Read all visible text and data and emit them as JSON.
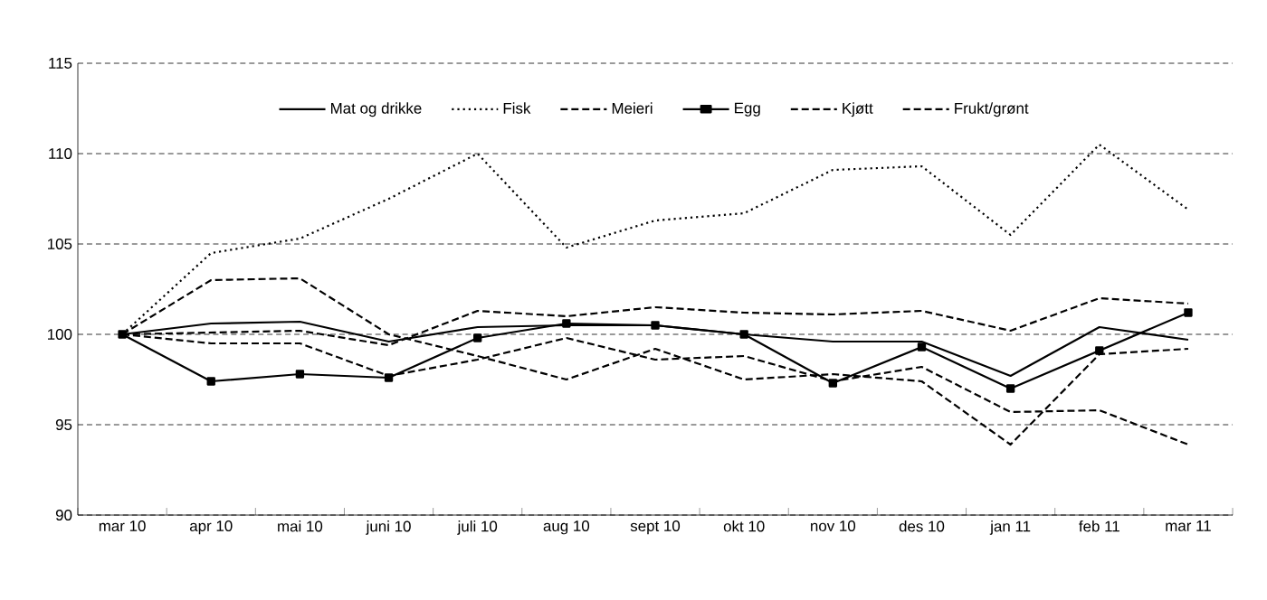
{
  "chart_data": {
    "type": "line",
    "categories": [
      "mar 10",
      "apr 10",
      "mai 10",
      "juni 10",
      "juli 10",
      "aug 10",
      "sept 10",
      "okt 10",
      "nov 10",
      "des 10",
      "jan 11",
      "feb 11",
      "mar 11"
    ],
    "ylim": [
      90,
      115
    ],
    "yticks": [
      90,
      95,
      100,
      105,
      110,
      115
    ],
    "grid": "y",
    "legend": "top",
    "marker": "none",
    "series": [
      {
        "name": "Mat og drikke",
        "color": "#000000",
        "line_style": "solid",
        "values": [
          100,
          100.6,
          100.7,
          99.6,
          100.4,
          100.5,
          100.5,
          100.0,
          99.6,
          99.6,
          97.7,
          100.4,
          99.7
        ]
      },
      {
        "name": "Fisk",
        "color": "#000000",
        "line_style": "dotted",
        "values": [
          100,
          104.5,
          105.3,
          107.5,
          110.0,
          104.8,
          106.3,
          106.7,
          109.1,
          109.3,
          105.5,
          110.5,
          106.9
        ]
      },
      {
        "name": "Meieri",
        "color": "#000000",
        "line_style": "dashed",
        "values": [
          100,
          100.1,
          100.2,
          99.4,
          101.3,
          101.0,
          101.5,
          101.2,
          101.1,
          101.3,
          100.2,
          102.0,
          101.7
        ]
      },
      {
        "name": "Egg",
        "color": "#000000",
        "line_style": "solid",
        "marker": "square",
        "values": [
          100,
          97.4,
          97.8,
          97.6,
          99.8,
          100.6,
          100.5,
          100.0,
          97.3,
          99.3,
          97.0,
          99.1,
          101.2
        ]
      },
      {
        "name": "Kjøtt",
        "color": "#000000",
        "line_style": "dashed",
        "values": [
          100,
          99.5,
          99.5,
          97.7,
          98.6,
          99.8,
          98.6,
          98.8,
          97.4,
          98.2,
          95.7,
          95.8,
          93.9
        ]
      },
      {
        "name": "Frukt/grønt",
        "color": "#000000",
        "line_style": "dashed",
        "values": [
          100,
          103.0,
          103.1,
          100.0,
          98.8,
          97.5,
          99.2,
          97.5,
          97.8,
          97.4,
          93.9,
          98.9,
          99.2
        ]
      }
    ]
  }
}
